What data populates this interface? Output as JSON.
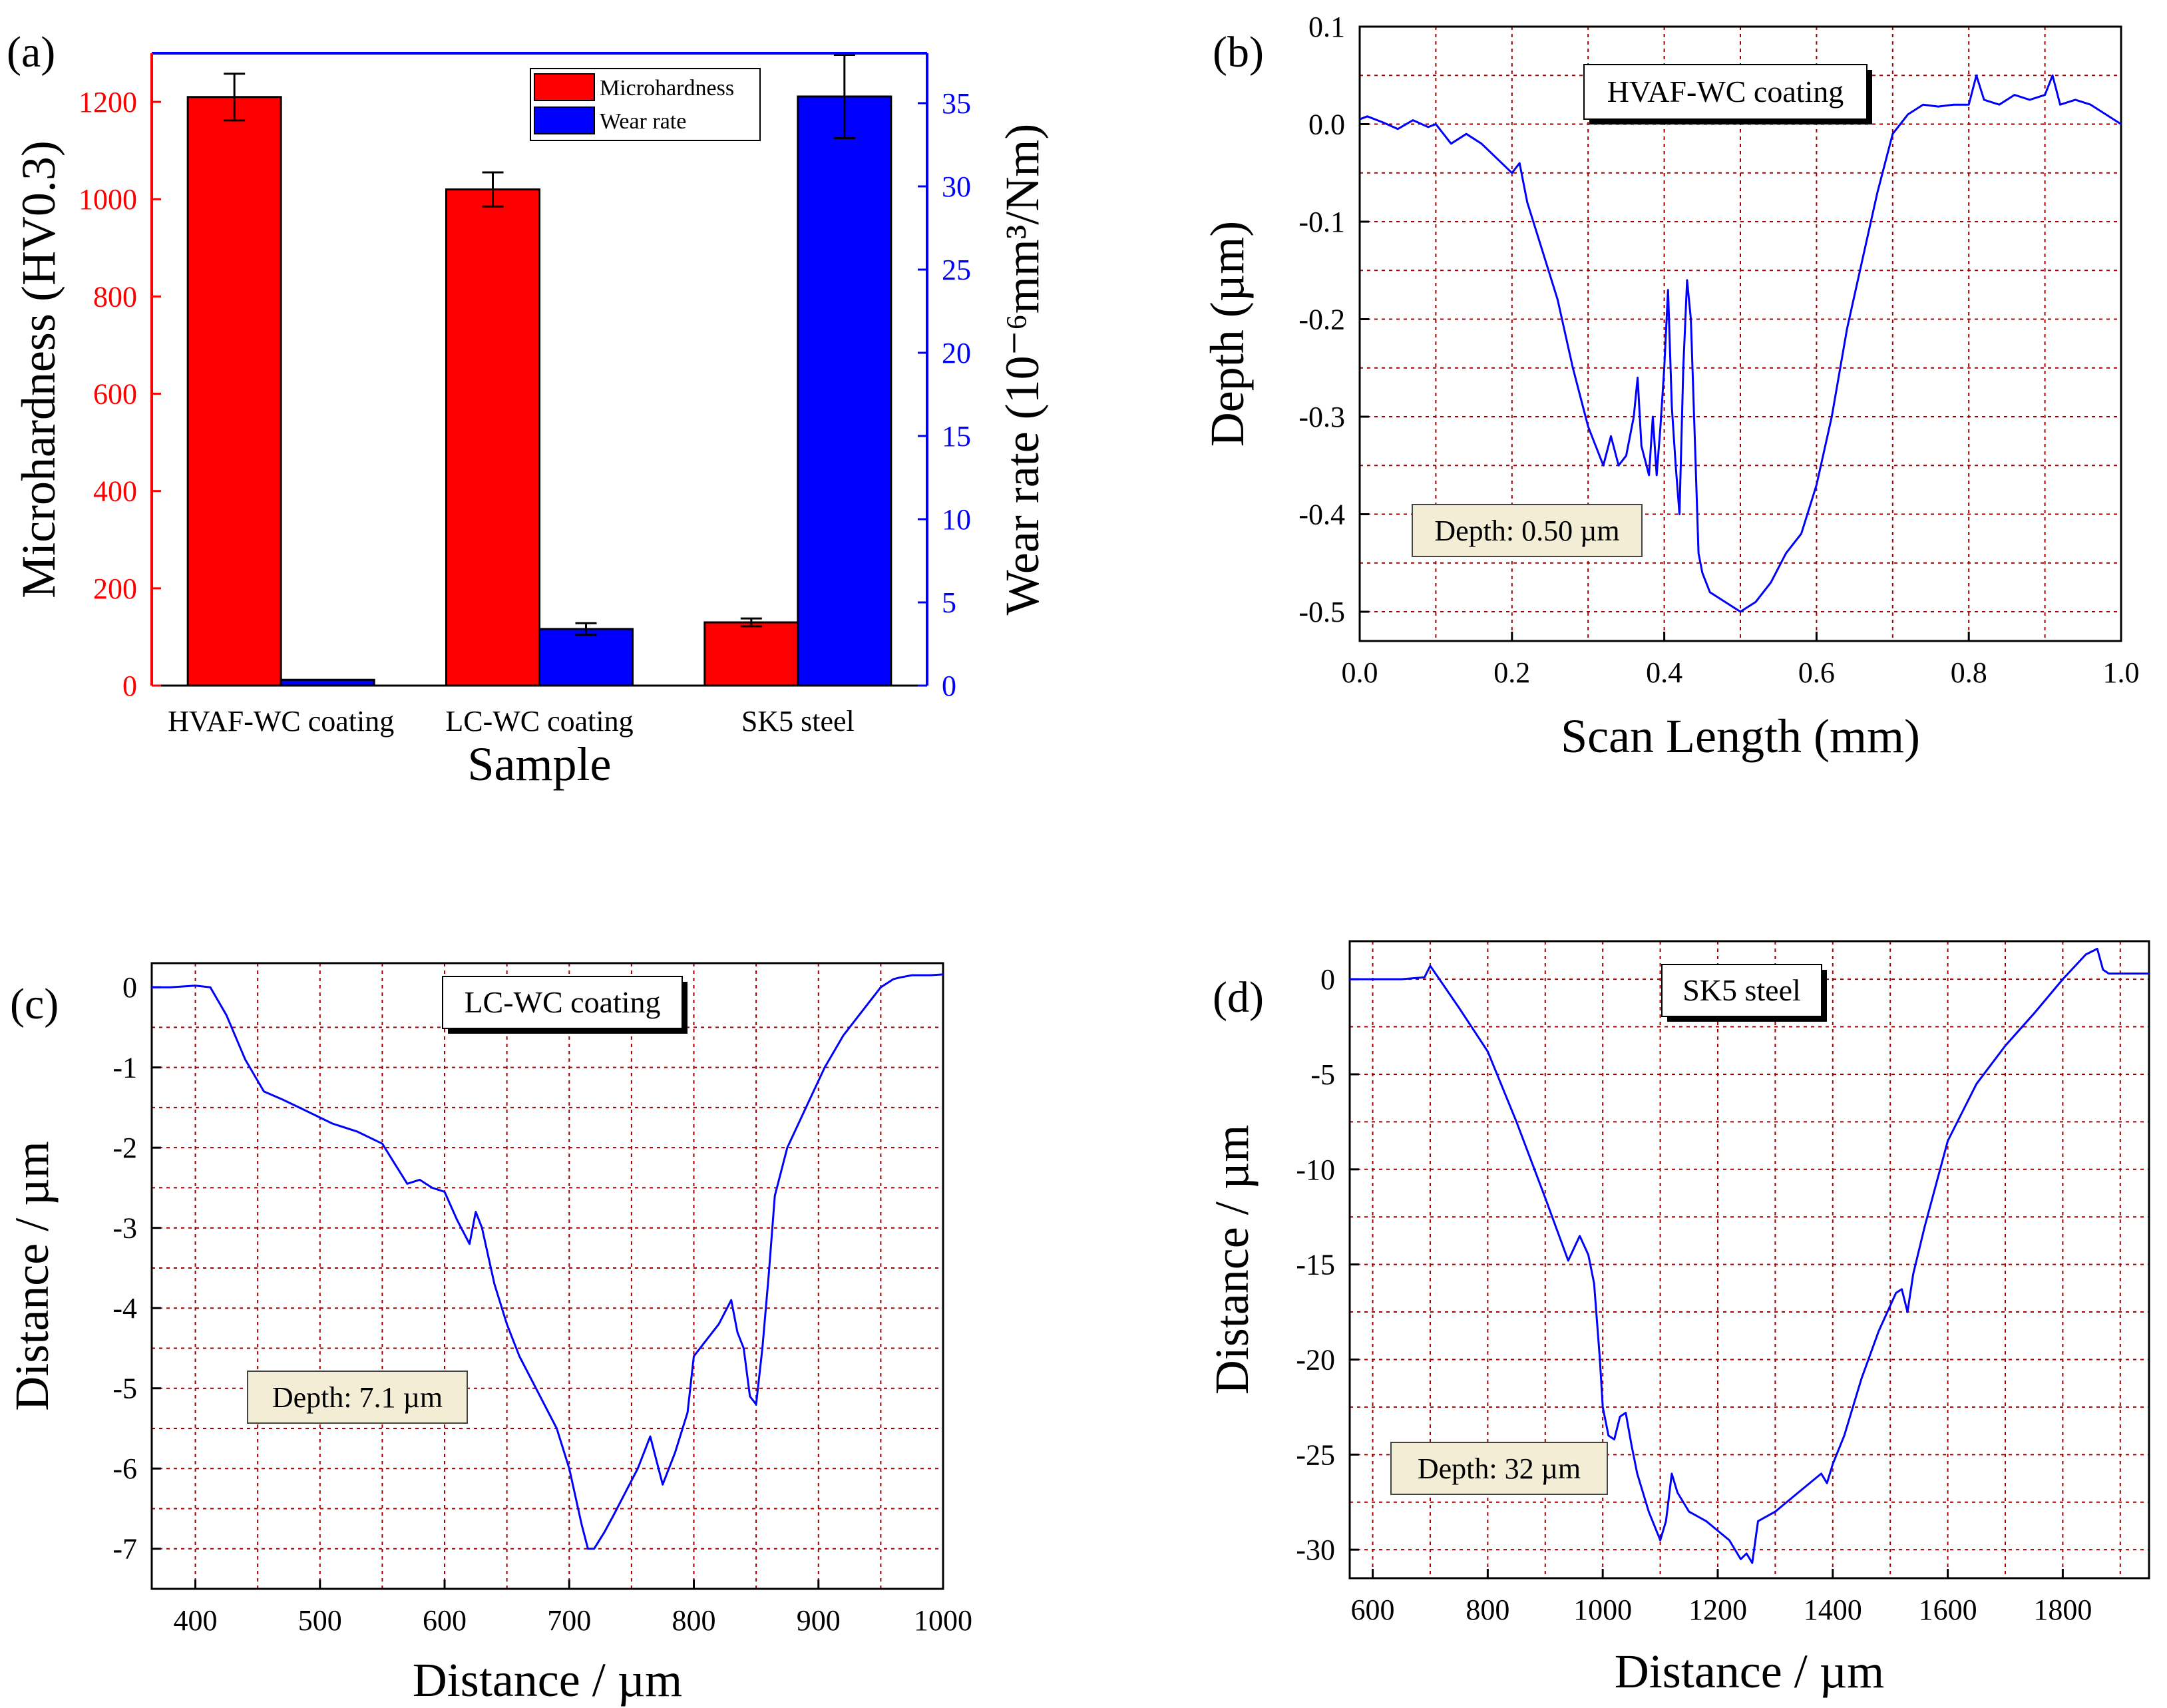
{
  "chart_data": [
    {
      "id": "a",
      "panel_label": "(a)",
      "type": "bar",
      "xlabel": "Sample",
      "ylabel_left": "Microhardness (HV0.3)",
      "ylabel_right": "Wear rate (10⁻⁶mm³/Nm)",
      "ylim_left": [
        0,
        1300
      ],
      "ylim_right": [
        0,
        38
      ],
      "yticks_left": [
        0,
        200,
        400,
        600,
        800,
        1000,
        1200
      ],
      "yticks_right": [
        0,
        5,
        10,
        15,
        20,
        25,
        30,
        35
      ],
      "categories": [
        "HVAF-WC coating",
        "LC-WC coating",
        "SK5 steel"
      ],
      "series": [
        {
          "name": "Microhardness",
          "axis": "left",
          "color": "#ff0000",
          "values": [
            1210,
            1020,
            130
          ],
          "errors": [
            48,
            35,
            8
          ]
        },
        {
          "name": "Wear rate",
          "axis": "right",
          "color": "#0000ff",
          "values": [
            0.35,
            3.4,
            35.4
          ],
          "errors": [
            0,
            0.35,
            2.5
          ]
        }
      ],
      "legend_position": "top-right",
      "left_axis_color": "#ff0000",
      "right_axis_color": "#0000ff"
    },
    {
      "id": "b",
      "panel_label": "(b)",
      "type": "line",
      "annotation": "HVAF-WC coating",
      "depth_label": "Depth: 0.50 µm",
      "xlabel": "Scan Length (mm)",
      "ylabel": "Depth (µm)",
      "xlim": [
        0.0,
        1.0
      ],
      "ylim": [
        -0.53,
        0.1
      ],
      "xticks": [
        0.0,
        0.2,
        0.4,
        0.6,
        0.8,
        1.0
      ],
      "xtick_labels": [
        "0.0",
        "0.2",
        "0.4",
        "0.6",
        "0.8",
        "1.0"
      ],
      "yticks": [
        -0.5,
        -0.4,
        -0.3,
        -0.2,
        -0.1,
        0.0,
        0.1
      ],
      "ytick_labels": [
        "-0.5",
        "-0.4",
        "-0.3",
        "-0.2",
        "-0.1",
        "0.0",
        "0.1"
      ],
      "grid_x": [
        0.1,
        0.2,
        0.3,
        0.4,
        0.5,
        0.6,
        0.7,
        0.8,
        0.9
      ],
      "grid_y": [
        -0.5,
        -0.45,
        -0.4,
        -0.35,
        -0.3,
        -0.25,
        -0.2,
        -0.15,
        -0.1,
        -0.05,
        0.0,
        0.05
      ],
      "line_color": "#0000ff",
      "x": [
        0.0,
        0.01,
        0.03,
        0.05,
        0.07,
        0.09,
        0.1,
        0.12,
        0.14,
        0.16,
        0.18,
        0.2,
        0.21,
        0.22,
        0.24,
        0.26,
        0.28,
        0.3,
        0.31,
        0.32,
        0.33,
        0.34,
        0.35,
        0.36,
        0.365,
        0.37,
        0.38,
        0.385,
        0.39,
        0.395,
        0.4,
        0.405,
        0.41,
        0.415,
        0.42,
        0.425,
        0.43,
        0.435,
        0.44,
        0.445,
        0.45,
        0.46,
        0.48,
        0.5,
        0.52,
        0.54,
        0.56,
        0.58,
        0.6,
        0.62,
        0.64,
        0.66,
        0.68,
        0.7,
        0.72,
        0.74,
        0.76,
        0.78,
        0.8,
        0.81,
        0.82,
        0.84,
        0.86,
        0.88,
        0.9,
        0.91,
        0.92,
        0.94,
        0.96,
        0.98,
        1.0
      ],
      "y": [
        0.005,
        0.008,
        0.002,
        -0.005,
        0.004,
        -0.003,
        0.0,
        -0.02,
        -0.01,
        -0.02,
        -0.035,
        -0.05,
        -0.04,
        -0.08,
        -0.13,
        -0.18,
        -0.25,
        -0.31,
        -0.33,
        -0.35,
        -0.32,
        -0.35,
        -0.34,
        -0.3,
        -0.26,
        -0.33,
        -0.36,
        -0.3,
        -0.36,
        -0.31,
        -0.25,
        -0.17,
        -0.29,
        -0.35,
        -0.4,
        -0.25,
        -0.16,
        -0.2,
        -0.32,
        -0.44,
        -0.46,
        -0.48,
        -0.49,
        -0.5,
        -0.49,
        -0.47,
        -0.44,
        -0.42,
        -0.37,
        -0.3,
        -0.21,
        -0.14,
        -0.07,
        -0.01,
        0.01,
        0.02,
        0.018,
        0.02,
        0.02,
        0.05,
        0.025,
        0.02,
        0.03,
        0.025,
        0.03,
        0.05,
        0.02,
        0.025,
        0.02,
        0.01,
        0.0
      ]
    },
    {
      "id": "c",
      "panel_label": "(c)",
      "type": "line",
      "annotation": "LC-WC coating",
      "depth_label": "Depth: 7.1 µm",
      "xlabel": "Distance / µm",
      "ylabel": "Distance / µm",
      "xlim": [
        365,
        1000
      ],
      "ylim": [
        -7.5,
        0.3
      ],
      "xticks": [
        400,
        500,
        600,
        700,
        800,
        900,
        1000
      ],
      "xtick_labels": [
        "400",
        "500",
        "600",
        "700",
        "800",
        "900",
        "1000"
      ],
      "yticks": [
        -7,
        -6,
        -5,
        -4,
        -3,
        -2,
        -1,
        0
      ],
      "ytick_labels": [
        "-7",
        "-6",
        "-5",
        "-4",
        "-3",
        "-2",
        "-1",
        "0"
      ],
      "grid_x": [
        400,
        450,
        500,
        550,
        600,
        650,
        700,
        750,
        800,
        850,
        900,
        950
      ],
      "grid_y": [
        -7,
        -6.5,
        -6,
        -5.5,
        -5,
        -4.5,
        -4,
        -3.5,
        -3,
        -2.5,
        -2,
        -1.5,
        -1,
        -0.5
      ],
      "line_color": "#0000ff",
      "x": [
        365,
        380,
        400,
        412,
        425,
        440,
        455,
        470,
        490,
        510,
        530,
        550,
        560,
        570,
        580,
        590,
        600,
        610,
        620,
        625,
        630,
        640,
        650,
        660,
        670,
        680,
        690,
        700,
        710,
        715,
        720,
        728,
        735,
        745,
        755,
        765,
        775,
        785,
        795,
        800,
        810,
        820,
        830,
        835,
        840,
        845,
        850,
        855,
        860,
        865,
        875,
        890,
        905,
        920,
        935,
        950,
        960,
        965,
        975,
        990,
        1000
      ],
      "y": [
        0.0,
        0.0,
        0.02,
        0.0,
        -0.35,
        -0.9,
        -1.3,
        -1.4,
        -1.55,
        -1.7,
        -1.8,
        -1.95,
        -2.2,
        -2.45,
        -2.4,
        -2.5,
        -2.55,
        -2.9,
        -3.2,
        -2.8,
        -3.0,
        -3.7,
        -4.2,
        -4.6,
        -4.9,
        -5.2,
        -5.5,
        -6.0,
        -6.7,
        -7.0,
        -7.0,
        -6.8,
        -6.6,
        -6.3,
        -6.0,
        -5.6,
        -6.2,
        -5.8,
        -5.3,
        -4.6,
        -4.4,
        -4.2,
        -3.9,
        -4.3,
        -4.5,
        -5.1,
        -5.2,
        -4.5,
        -3.6,
        -2.6,
        -2.0,
        -1.5,
        -1.0,
        -0.6,
        -0.3,
        0.0,
        0.1,
        0.12,
        0.15,
        0.15,
        0.16
      ]
    },
    {
      "id": "d",
      "panel_label": "(d)",
      "type": "line",
      "annotation": "SK5 steel",
      "depth_label": "Depth: 32 µm",
      "xlabel": "Distance / µm",
      "ylabel": "Distance / µm",
      "xlim": [
        560,
        1950
      ],
      "ylim": [
        -31.5,
        2
      ],
      "xticks": [
        600,
        800,
        1000,
        1200,
        1400,
        1600,
        1800
      ],
      "xtick_labels": [
        "600",
        "800",
        "1000",
        "1200",
        "1400",
        "1600",
        "1800"
      ],
      "yticks": [
        -30,
        -25,
        -20,
        -15,
        -10,
        -5,
        0
      ],
      "ytick_labels": [
        "-30",
        "-25",
        "-20",
        "-15",
        "-10",
        "-5",
        "0"
      ],
      "grid_x": [
        600,
        700,
        800,
        900,
        1000,
        1100,
        1200,
        1300,
        1400,
        1500,
        1600,
        1700,
        1800,
        1900
      ],
      "grid_y": [
        -30,
        -27.5,
        -25,
        -22.5,
        -20,
        -17.5,
        -15,
        -12.5,
        -10,
        -7.5,
        -5,
        -2.5,
        0
      ],
      "line_color": "#0000ff",
      "x": [
        560,
        600,
        650,
        690,
        700,
        750,
        800,
        850,
        900,
        940,
        960,
        975,
        985,
        995,
        1000,
        1010,
        1020,
        1030,
        1040,
        1050,
        1060,
        1080,
        1100,
        1110,
        1120,
        1130,
        1150,
        1180,
        1200,
        1220,
        1240,
        1250,
        1260,
        1270,
        1300,
        1340,
        1380,
        1390,
        1400,
        1420,
        1450,
        1480,
        1510,
        1520,
        1530,
        1540,
        1560,
        1600,
        1650,
        1700,
        1750,
        1800,
        1840,
        1860,
        1870,
        1880,
        1900,
        1950
      ],
      "y": [
        0.0,
        0.0,
        0.0,
        0.1,
        0.7,
        -1.5,
        -3.8,
        -7.5,
        -11.5,
        -14.8,
        -13.5,
        -14.5,
        -16.0,
        -20.0,
        -22.5,
        -24.0,
        -24.2,
        -23.0,
        -22.8,
        -24.5,
        -26.0,
        -28.0,
        -29.5,
        -28.5,
        -26.0,
        -27.0,
        -28.0,
        -28.5,
        -29.0,
        -29.5,
        -30.5,
        -30.2,
        -30.7,
        -28.5,
        -28.0,
        -27.0,
        -26.0,
        -26.5,
        -25.5,
        -24.0,
        -21.0,
        -18.5,
        -16.5,
        -16.3,
        -17.5,
        -15.5,
        -13.0,
        -8.5,
        -5.5,
        -3.5,
        -1.8,
        0.0,
        1.3,
        1.6,
        0.5,
        0.3,
        0.3,
        0.3
      ]
    }
  ]
}
